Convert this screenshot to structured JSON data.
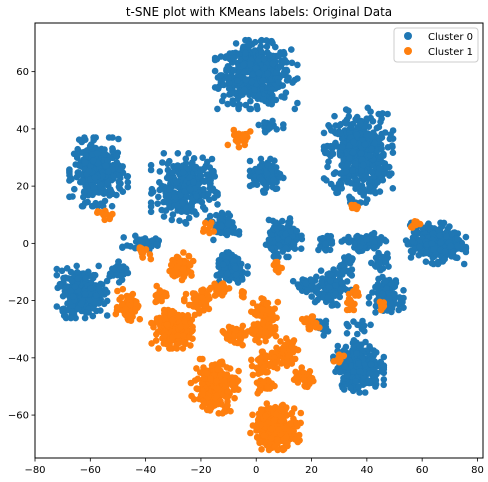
{
  "chart_data": {
    "type": "scatter",
    "title": "t-SNE plot with KMeans labels: Original Data",
    "xlabel": "",
    "ylabel": "",
    "xlim": [
      -80,
      82
    ],
    "ylim": [
      -75,
      77
    ],
    "xticks": [
      -80,
      -60,
      -40,
      -20,
      0,
      20,
      40,
      60,
      80
    ],
    "yticks": [
      -60,
      -40,
      -20,
      0,
      20,
      40,
      60
    ],
    "grid": false,
    "legend_position": "top-right",
    "series": [
      {
        "name": "Cluster 0",
        "color": "#1f77b4",
        "clusters": [
          {
            "cx": 0,
            "cy": 59,
            "sx": 6.2,
            "sy": 5.0,
            "n": 520
          },
          {
            "cx": 37,
            "cy": 31,
            "sx": 5.2,
            "sy": 7.0,
            "n": 480
          },
          {
            "cx": -57,
            "cy": 25,
            "sx": 4.4,
            "sy": 5.0,
            "n": 300
          },
          {
            "cx": -26,
            "cy": 19,
            "sx": 5.0,
            "sy": 5.2,
            "n": 300
          },
          {
            "cx": 4,
            "cy": 24,
            "sx": 2.6,
            "sy": 2.6,
            "n": 120
          },
          {
            "cx": -63,
            "cy": -17,
            "sx": 3.8,
            "sy": 3.8,
            "n": 300
          },
          {
            "cx": 65,
            "cy": 0,
            "sx": 4.5,
            "sy": 3.0,
            "n": 320
          },
          {
            "cx": 37,
            "cy": -43,
            "sx": 3.8,
            "sy": 3.8,
            "n": 300
          },
          {
            "cx": 10,
            "cy": 2,
            "sx": 2.7,
            "sy": 2.8,
            "n": 160
          },
          {
            "cx": -9,
            "cy": -9,
            "sx": 2.6,
            "sy": 2.4,
            "n": 140
          },
          {
            "cx": 47,
            "cy": -18,
            "sx": 2.6,
            "sy": 2.6,
            "n": 120
          },
          {
            "cx": 28,
            "cy": -15,
            "sx": 2.8,
            "sy": 2.8,
            "n": 120
          },
          {
            "cx": 39,
            "cy": 0,
            "sx": 3.5,
            "sy": 1.5,
            "n": 90
          },
          {
            "cx": -11,
            "cy": 6,
            "sx": 2.0,
            "sy": 2.0,
            "n": 60
          },
          {
            "cx": -40,
            "cy": 0,
            "sx": 3.5,
            "sy": 1.3,
            "n": 50
          },
          {
            "cx": -50,
            "cy": -10,
            "sx": 1.5,
            "sy": 1.5,
            "n": 40
          },
          {
            "cx": 19,
            "cy": -15,
            "sx": 2.5,
            "sy": 1.5,
            "n": 35
          },
          {
            "cx": 23,
            "cy": -29,
            "sx": 1.3,
            "sy": 1.5,
            "n": 30
          },
          {
            "cx": 25,
            "cy": 0,
            "sx": 1.3,
            "sy": 1.3,
            "n": 25
          },
          {
            "cx": 33,
            "cy": -7,
            "sx": 1.5,
            "sy": 1.5,
            "n": 20
          },
          {
            "cx": 45,
            "cy": -7,
            "sx": 1.5,
            "sy": 1.5,
            "n": 20
          },
          {
            "cx": 5,
            "cy": 41,
            "sx": 2.0,
            "sy": 1.0,
            "n": 20
          },
          {
            "cx": 37,
            "cy": -30,
            "sx": 2.0,
            "sy": 1.3,
            "n": 15
          }
        ]
      },
      {
        "name": "Cluster 1",
        "color": "#ff7f0e",
        "clusters": [
          {
            "cx": 7,
            "cy": -64,
            "sx": 3.8,
            "sy": 3.4,
            "n": 300
          },
          {
            "cx": -15,
            "cy": -50,
            "sx": 3.6,
            "sy": 4.0,
            "n": 250
          },
          {
            "cx": -30,
            "cy": -30,
            "sx": 3.3,
            "sy": 2.8,
            "n": 200
          },
          {
            "cx": -46,
            "cy": -22,
            "sx": 2.0,
            "sy": 2.5,
            "n": 70
          },
          {
            "cx": -27,
            "cy": -8,
            "sx": 2.0,
            "sy": 2.0,
            "n": 70
          },
          {
            "cx": 3,
            "cy": -24,
            "sx": 2.0,
            "sy": 2.0,
            "n": 60
          },
          {
            "cx": 3,
            "cy": -31,
            "sx": 2.5,
            "sy": 1.5,
            "n": 60
          },
          {
            "cx": -8,
            "cy": -32,
            "sx": 1.7,
            "sy": 1.5,
            "n": 50
          },
          {
            "cx": 11,
            "cy": -38,
            "sx": 2.0,
            "sy": 2.0,
            "n": 50
          },
          {
            "cx": 3,
            "cy": -42,
            "sx": 2.0,
            "sy": 2.0,
            "n": 50
          },
          {
            "cx": 17,
            "cy": -47,
            "sx": 2.0,
            "sy": 1.5,
            "n": 40
          },
          {
            "cx": -20,
            "cy": -21,
            "sx": 2.5,
            "sy": 2.0,
            "n": 50
          },
          {
            "cx": -13,
            "cy": -16,
            "sx": 1.5,
            "sy": 1.5,
            "n": 30
          },
          {
            "cx": -6,
            "cy": 37,
            "sx": 2.0,
            "sy": 1.5,
            "n": 30
          },
          {
            "cx": 3,
            "cy": -50,
            "sx": 1.5,
            "sy": 1.3,
            "n": 30
          },
          {
            "cx": -35,
            "cy": -18,
            "sx": 1.3,
            "sy": 1.3,
            "n": 20
          },
          {
            "cx": -41,
            "cy": -3,
            "sx": 1.2,
            "sy": 1.2,
            "n": 15
          },
          {
            "cx": 20,
            "cy": -28,
            "sx": 1.5,
            "sy": 1.0,
            "n": 20
          },
          {
            "cx": 34,
            "cy": -21,
            "sx": 1.0,
            "sy": 1.5,
            "n": 15
          },
          {
            "cx": 46,
            "cy": -22,
            "sx": 1.0,
            "sy": 1.0,
            "n": 10
          },
          {
            "cx": -18,
            "cy": 5,
            "sx": 1.2,
            "sy": 1.5,
            "n": 10
          },
          {
            "cx": -55,
            "cy": 10,
            "sx": 1.5,
            "sy": 0.8,
            "n": 10
          },
          {
            "cx": 36,
            "cy": 13,
            "sx": 0.8,
            "sy": 0.8,
            "n": 8
          },
          {
            "cx": 57,
            "cy": 7,
            "sx": 1.0,
            "sy": 0.8,
            "n": 8
          },
          {
            "cx": 8,
            "cy": -8,
            "sx": 0.8,
            "sy": 1.5,
            "n": 8
          },
          {
            "cx": -5,
            "cy": -18,
            "sx": 0.8,
            "sy": 0.8,
            "n": 6
          },
          {
            "cx": 30,
            "cy": -40,
            "sx": 1.0,
            "sy": 1.0,
            "n": 8
          },
          {
            "cx": 37,
            "cy": -17,
            "sx": 0.8,
            "sy": 1.0,
            "n": 6
          },
          {
            "cx": -8,
            "cy": -48,
            "sx": 1.0,
            "sy": 0.8,
            "n": 6
          }
        ]
      }
    ]
  }
}
